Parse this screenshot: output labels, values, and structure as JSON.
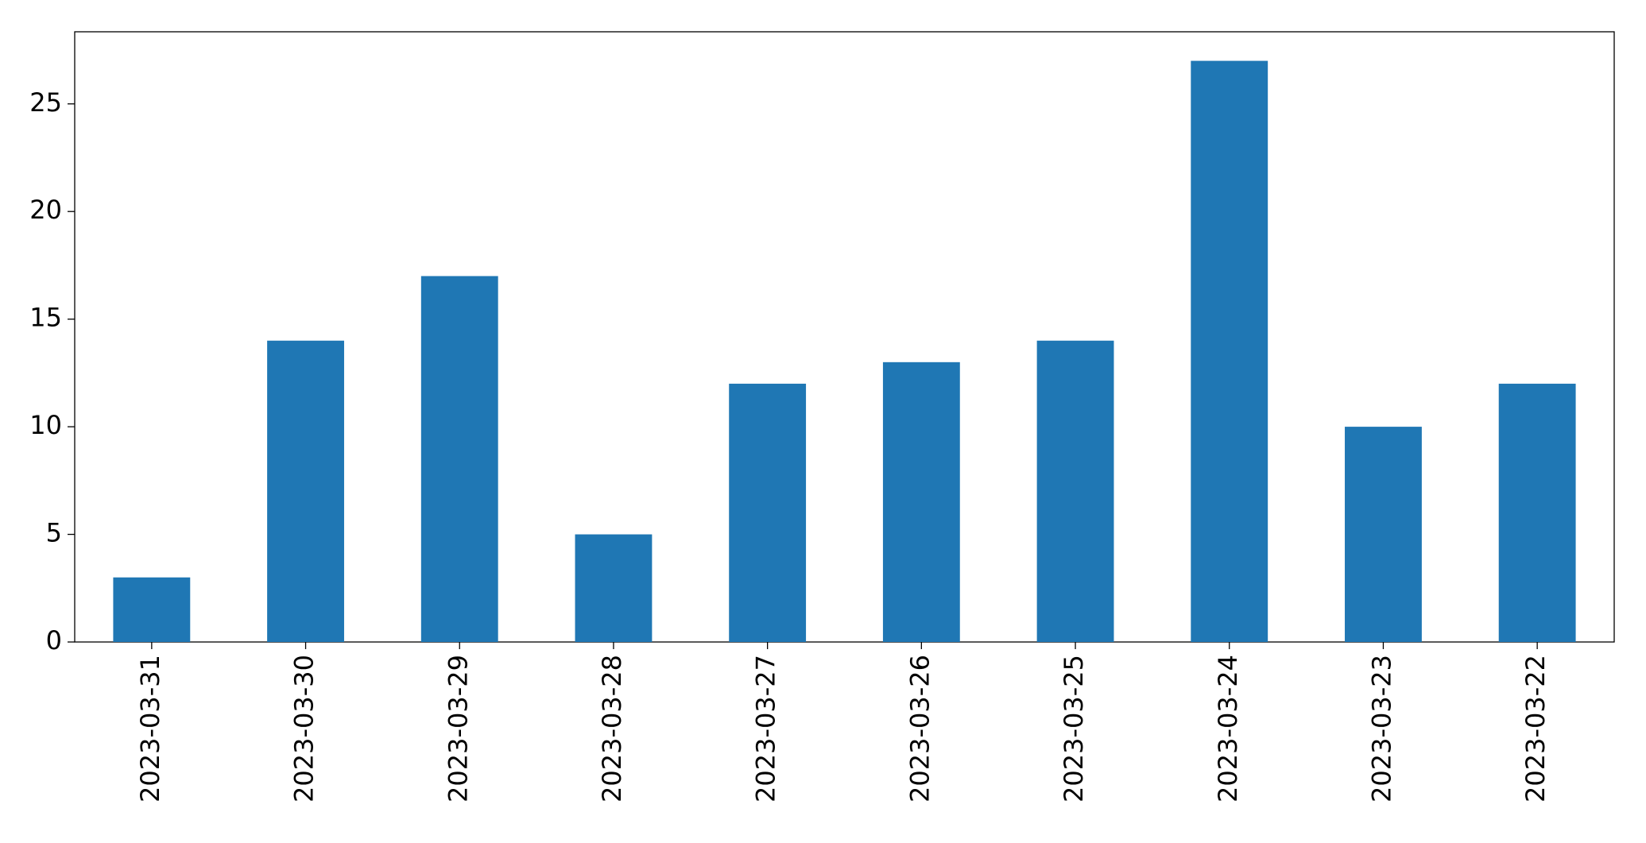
{
  "chart_data": {
    "type": "bar",
    "categories": [
      "2023-03-31",
      "2023-03-30",
      "2023-03-29",
      "2023-03-28",
      "2023-03-27",
      "2023-03-26",
      "2023-03-25",
      "2023-03-24",
      "2023-03-23",
      "2023-03-22"
    ],
    "values": [
      3,
      14,
      17,
      5,
      12,
      13,
      14,
      27,
      10,
      12
    ],
    "color": "#1f77b4",
    "ylim": [
      0,
      28.35
    ],
    "yticks": [
      0,
      5,
      10,
      15,
      20,
      25
    ],
    "grid": false
  }
}
